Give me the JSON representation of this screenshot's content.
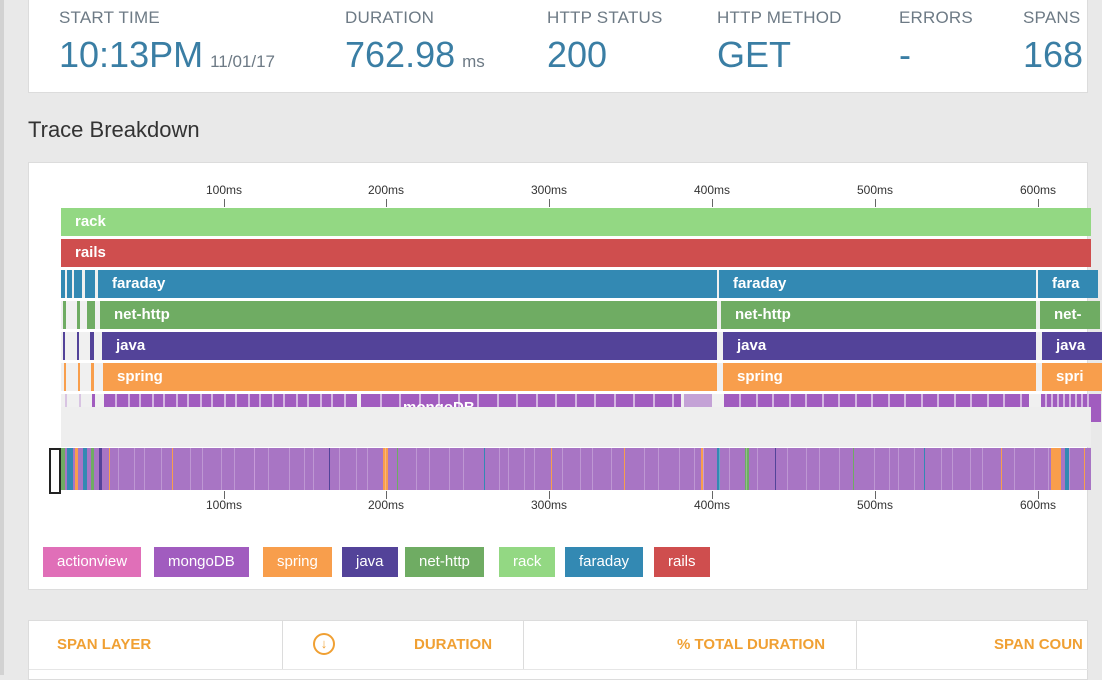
{
  "stats": [
    {
      "label": "START TIME",
      "value": "10:13PM",
      "unit": "11/01/17"
    },
    {
      "label": "DURATION",
      "value": "762.98",
      "unit": "ms"
    },
    {
      "label": "HTTP STATUS",
      "value": "200",
      "unit": ""
    },
    {
      "label": "HTTP METHOD",
      "value": "GET",
      "unit": ""
    },
    {
      "label": "ERRORS",
      "value": "-",
      "unit": ""
    },
    {
      "label": "SPANS",
      "value": "168",
      "unit": ""
    }
  ],
  "section_title": "Trace Breakdown",
  "timeline": {
    "ticks": [
      "100ms",
      "200ms",
      "300ms",
      "400ms",
      "500ms",
      "600ms"
    ]
  },
  "spans": {
    "rack": "rack",
    "rails": "rails",
    "faraday": [
      "faraday",
      "faraday",
      "fara"
    ],
    "net_http": [
      "net-http",
      "net-http",
      "net-"
    ],
    "java": [
      "java",
      "java",
      "java"
    ],
    "spring": [
      "spring",
      "spring",
      "spri"
    ],
    "mongodb": "mongoDB"
  },
  "legend": [
    {
      "name": "actionview",
      "color": "#e06fb8"
    },
    {
      "name": "mongoDB",
      "color": "#a15cbf"
    },
    {
      "name": "spring",
      "color": "#f89e4c"
    },
    {
      "name": "java",
      "color": "#534399"
    },
    {
      "name": "net-http",
      "color": "#6fac63"
    },
    {
      "name": "rack",
      "color": "#93d883"
    },
    {
      "name": "faraday",
      "color": "#3389b3"
    },
    {
      "name": "rails",
      "color": "#cf4e4e"
    }
  ],
  "table": {
    "headers": [
      "SPAN LAYER",
      "DURATION",
      "% TOTAL DURATION",
      "SPAN COUN"
    ],
    "sort_icon": "arrow-down-circle-icon"
  },
  "colors": {
    "accent": "#3a7ea4",
    "table_header": "#f0a033"
  }
}
